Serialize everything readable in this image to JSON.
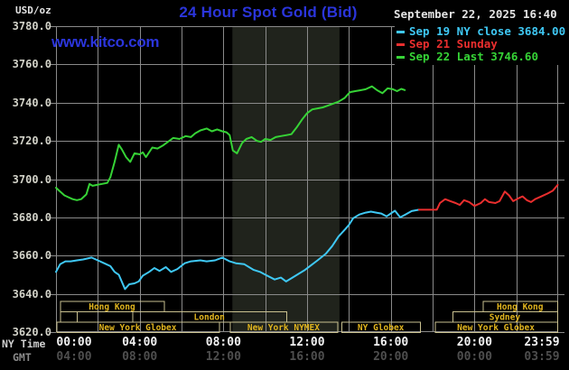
{
  "header": {
    "unit_label": "USD/oz",
    "title": "24 Hour Spot Gold (Bid)",
    "datetime": "September 22, 2025 16:40",
    "watermark": "www.kitco.com"
  },
  "legend": {
    "items": [
      {
        "label": "Sep 19 NY close 3684.00",
        "color": "#3fc8f4"
      },
      {
        "label": "Sep 21 Sunday",
        "color": "#ea2e2e"
      },
      {
        "label": "Sep 22 Last 3746.60",
        "color": "#36d336"
      }
    ]
  },
  "chart_data": {
    "type": "line",
    "title": "24 Hour Spot Gold (Bid)",
    "y_unit": "USD/oz",
    "y_range": [
      3620,
      3780
    ],
    "y_tick_step": 20,
    "x_range_hours": [
      0,
      24
    ],
    "grid_step_hours": 2,
    "prev_close": 3684.0,
    "last": 3746.6,
    "y_tick_labels": [
      "3780.0",
      "3760.0",
      "3740.0",
      "3720.0",
      "3700.0",
      "3680.0",
      "3660.0",
      "3640.0",
      "3620.0"
    ],
    "x_tick_hours": [
      0,
      4,
      8,
      12,
      16,
      20,
      24
    ],
    "x_tick_labels_ny": [
      "00:00",
      "04:00",
      "08:00",
      "12:00",
      "16:00",
      "20:00",
      "23:59"
    ],
    "x_tick_labels_gmt": [
      "04:00",
      "08:00",
      "12:00",
      "16:00",
      "20:00",
      "00:00",
      "03:59"
    ],
    "x_axis_row_labels": {
      "ny": "NY Time",
      "gmt": "GMT"
    },
    "highlight_band": {
      "start_hour": 8.43,
      "end_hour": 13.55,
      "color": "#20231c"
    },
    "series": [
      {
        "name": "Sep 19 NY close 3684.00",
        "color": "#3fc8f4",
        "points": [
          [
            0,
            3651.5
          ],
          [
            0.2,
            3655.5
          ],
          [
            0.45,
            3657
          ],
          [
            0.7,
            3657
          ],
          [
            1,
            3657.5
          ],
          [
            1.3,
            3658
          ],
          [
            1.7,
            3659
          ],
          [
            2,
            3657.5
          ],
          [
            2.3,
            3656
          ],
          [
            2.6,
            3654.5
          ],
          [
            2.8,
            3651.5
          ],
          [
            3,
            3650
          ],
          [
            3.3,
            3642.5
          ],
          [
            3.5,
            3645
          ],
          [
            3.75,
            3645.5
          ],
          [
            3.95,
            3646.5
          ],
          [
            4.15,
            3649.5
          ],
          [
            4.45,
            3651.5
          ],
          [
            4.7,
            3653.5
          ],
          [
            4.95,
            3652
          ],
          [
            5.25,
            3654
          ],
          [
            5.5,
            3651.5
          ],
          [
            5.8,
            3653
          ],
          [
            6.15,
            3656
          ],
          [
            6.45,
            3657
          ],
          [
            6.9,
            3657.5
          ],
          [
            7.2,
            3657
          ],
          [
            7.6,
            3657.5
          ],
          [
            7.95,
            3659
          ],
          [
            8.3,
            3657
          ],
          [
            8.6,
            3656
          ],
          [
            9,
            3655.5
          ],
          [
            9.45,
            3652.5
          ],
          [
            9.75,
            3651.5
          ],
          [
            10,
            3650
          ],
          [
            10.45,
            3647.5
          ],
          [
            10.75,
            3648.5
          ],
          [
            11,
            3646.5
          ],
          [
            11.3,
            3648.5
          ],
          [
            11.6,
            3650.5
          ],
          [
            11.9,
            3652.5
          ],
          [
            12.2,
            3655
          ],
          [
            12.5,
            3657.5
          ],
          [
            12.9,
            3661
          ],
          [
            13.2,
            3665
          ],
          [
            13.5,
            3670
          ],
          [
            13.8,
            3673.5
          ],
          [
            14,
            3676
          ],
          [
            14.2,
            3679.5
          ],
          [
            14.5,
            3681.5
          ],
          [
            14.8,
            3682.5
          ],
          [
            15.05,
            3683
          ],
          [
            15.3,
            3682.5
          ],
          [
            15.55,
            3682
          ],
          [
            15.8,
            3680.5
          ],
          [
            16,
            3682
          ],
          [
            16.2,
            3683.5
          ],
          [
            16.45,
            3680
          ],
          [
            16.7,
            3681.5
          ],
          [
            17,
            3683.3
          ],
          [
            17.35,
            3684
          ]
        ]
      },
      {
        "name": "Sep 21 Sunday",
        "color": "#ea2e2e",
        "points": [
          [
            17.35,
            3684
          ],
          [
            18.2,
            3684
          ],
          [
            18.35,
            3687.5
          ],
          [
            18.6,
            3689.5
          ],
          [
            18.85,
            3688.5
          ],
          [
            19.1,
            3687.5
          ],
          [
            19.3,
            3686.5
          ],
          [
            19.5,
            3689
          ],
          [
            19.75,
            3688
          ],
          [
            20,
            3686
          ],
          [
            20.3,
            3687.5
          ],
          [
            20.5,
            3689.5
          ],
          [
            20.7,
            3688
          ],
          [
            21,
            3687.5
          ],
          [
            21.2,
            3688.5
          ],
          [
            21.45,
            3693.5
          ],
          [
            21.65,
            3691.5
          ],
          [
            21.85,
            3688.5
          ],
          [
            22.1,
            3690
          ],
          [
            22.3,
            3691
          ],
          [
            22.5,
            3689
          ],
          [
            22.7,
            3688
          ],
          [
            22.9,
            3689.5
          ],
          [
            23.2,
            3691
          ],
          [
            23.5,
            3692.5
          ],
          [
            23.75,
            3694
          ],
          [
            23.98,
            3697
          ]
        ]
      },
      {
        "name": "Sep 22 Last 3746.60",
        "color": "#36d336",
        "points": [
          [
            0,
            3695.5
          ],
          [
            0.2,
            3693.5
          ],
          [
            0.4,
            3691.5
          ],
          [
            0.6,
            3690.5
          ],
          [
            0.8,
            3689.5
          ],
          [
            1,
            3689
          ],
          [
            1.2,
            3689.5
          ],
          [
            1.45,
            3692
          ],
          [
            1.6,
            3697.5
          ],
          [
            1.75,
            3696.5
          ],
          [
            1.95,
            3697
          ],
          [
            2.2,
            3697.5
          ],
          [
            2.45,
            3698
          ],
          [
            2.6,
            3701
          ],
          [
            2.8,
            3709
          ],
          [
            3,
            3718
          ],
          [
            3.15,
            3715.5
          ],
          [
            3.35,
            3711.5
          ],
          [
            3.55,
            3709
          ],
          [
            3.75,
            3713.5
          ],
          [
            4,
            3713
          ],
          [
            4.15,
            3714
          ],
          [
            4.3,
            3711.5
          ],
          [
            4.6,
            3716.5
          ],
          [
            4.85,
            3716
          ],
          [
            5.1,
            3717.5
          ],
          [
            5.35,
            3719.5
          ],
          [
            5.6,
            3721.5
          ],
          [
            5.9,
            3721
          ],
          [
            6.2,
            3722.5
          ],
          [
            6.45,
            3722
          ],
          [
            6.65,
            3724
          ],
          [
            6.9,
            3725.5
          ],
          [
            7.2,
            3726.5
          ],
          [
            7.45,
            3725
          ],
          [
            7.7,
            3726
          ],
          [
            7.95,
            3725
          ],
          [
            8.15,
            3724.5
          ],
          [
            8.3,
            3723
          ],
          [
            8.45,
            3715
          ],
          [
            8.65,
            3713.5
          ],
          [
            8.9,
            3719
          ],
          [
            9.1,
            3721
          ],
          [
            9.35,
            3722
          ],
          [
            9.6,
            3720
          ],
          [
            9.8,
            3719.5
          ],
          [
            10,
            3721
          ],
          [
            10.25,
            3720.5
          ],
          [
            10.5,
            3722
          ],
          [
            10.75,
            3722.5
          ],
          [
            11,
            3723
          ],
          [
            11.25,
            3723.5
          ],
          [
            11.5,
            3727
          ],
          [
            11.75,
            3731
          ],
          [
            12,
            3734.5
          ],
          [
            12.25,
            3736.5
          ],
          [
            12.5,
            3737
          ],
          [
            12.75,
            3737.5
          ],
          [
            13,
            3738.5
          ],
          [
            13.25,
            3739.5
          ],
          [
            13.5,
            3740.5
          ],
          [
            13.8,
            3742.5
          ],
          [
            14.05,
            3745.5
          ],
          [
            14.3,
            3746
          ],
          [
            14.55,
            3746.5
          ],
          [
            14.8,
            3747
          ],
          [
            15.1,
            3748.5
          ],
          [
            15.35,
            3746.5
          ],
          [
            15.6,
            3745
          ],
          [
            15.85,
            3747.5
          ],
          [
            16.1,
            3747
          ],
          [
            16.3,
            3746
          ],
          [
            16.5,
            3747.2
          ],
          [
            16.67,
            3746.6
          ]
        ]
      }
    ],
    "sessions": {
      "rows": [
        {
          "top": 333.5,
          "height": 11.5,
          "boxes": [
            {
              "label": "Hong Kong",
              "start": 0.2,
              "end": 5.15
            },
            {
              "label": "Hong Kong",
              "start": 20.4,
              "end": 23.95
            }
          ]
        },
        {
          "top": 345,
          "height": 11.5,
          "boxes": [
            {
              "label": "",
              "start": 0.2,
              "end": 1.0
            },
            {
              "label": "",
              "start": 1.0,
              "end": 3.65
            },
            {
              "label": "London",
              "start": 3.65,
              "end": 11.0
            },
            {
              "label": "Sydney",
              "start": 18.95,
              "end": 23.95
            }
          ]
        },
        {
          "top": 356.5,
          "height": 11.5,
          "boxes": [
            {
              "label": "New York Globex",
              "start": 0.02,
              "end": 7.8
            },
            {
              "label": "New York NYMEX",
              "start": 8.3,
              "end": 13.45
            },
            {
              "label": "NY Globex",
              "start": 13.65,
              "end": 17.4
            },
            {
              "label": "New York Globex",
              "start": 18.1,
              "end": 23.95
            }
          ]
        }
      ],
      "border_color": "#c9c08f",
      "label_color": "#e0b41e"
    }
  }
}
